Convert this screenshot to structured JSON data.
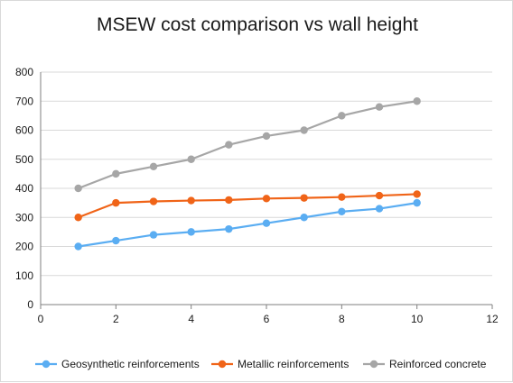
{
  "chart_data": {
    "type": "line",
    "title": "MSEW cost comparison vs wall height",
    "xlabel": "",
    "ylabel": "",
    "xlim": [
      0,
      12
    ],
    "ylim": [
      0,
      800
    ],
    "xticks": [
      0,
      2,
      4,
      6,
      8,
      10,
      12
    ],
    "yticks": [
      0,
      100,
      200,
      300,
      400,
      500,
      600,
      700,
      800
    ],
    "grid": "horizontal",
    "legend_position": "bottom",
    "x": [
      1,
      2,
      3,
      4,
      5,
      6,
      7,
      8,
      9,
      10
    ],
    "series": [
      {
        "name": "Geosynthetic reinforcements",
        "color": "#5aadf2",
        "values": [
          200,
          220,
          240,
          250,
          260,
          280,
          300,
          320,
          330,
          350
        ]
      },
      {
        "name": "Metallic reinforcements",
        "color": "#f06418",
        "values": [
          300,
          350,
          355,
          358,
          360,
          365,
          367,
          370,
          375,
          380
        ]
      },
      {
        "name": "Reinforced concrete",
        "color": "#a6a6a6",
        "values": [
          400,
          450,
          475,
          500,
          550,
          580,
          600,
          650,
          680,
          700
        ]
      }
    ]
  }
}
